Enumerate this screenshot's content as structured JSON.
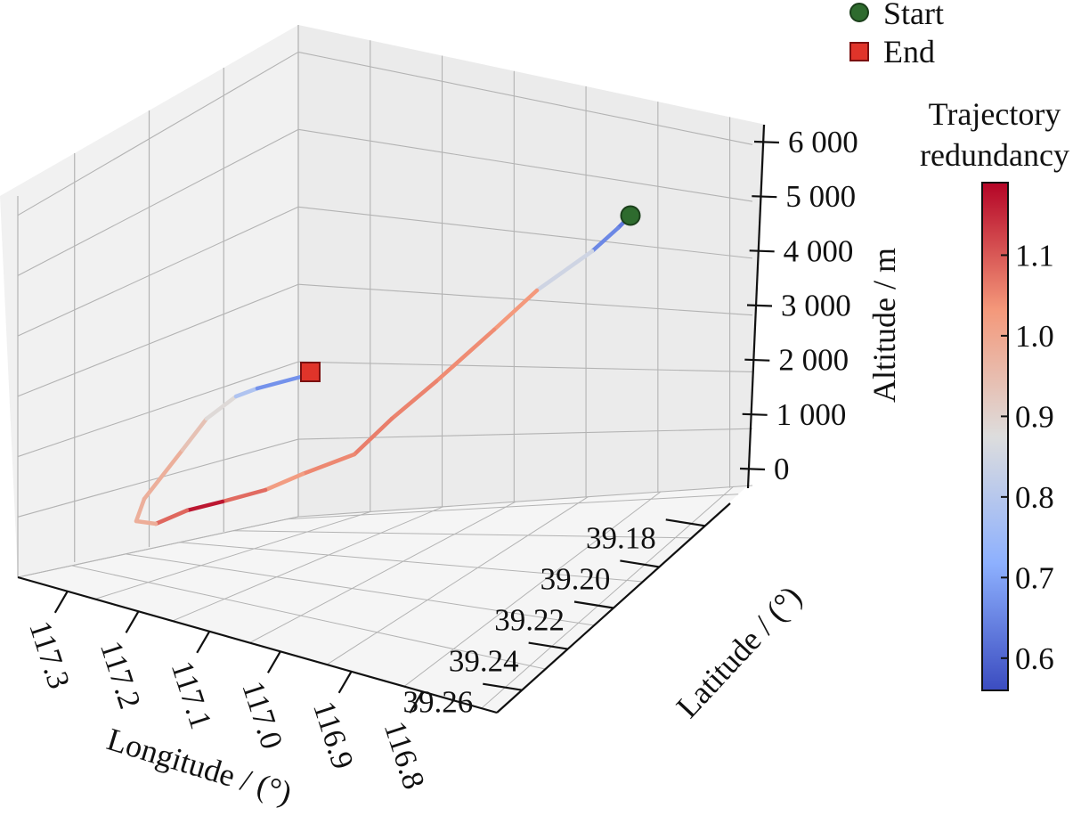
{
  "chart_data": {
    "type": "line",
    "projection": "3d",
    "xlabel": "Longitude / (°)",
    "ylabel": "Latitude / (°)",
    "zlabel": "Altitude / m",
    "x_ticks": [
      "117.3",
      "117.2",
      "117.1",
      "117.0",
      "116.9",
      "116.8"
    ],
    "y_ticks": [
      "39.18",
      "39.20",
      "39.22",
      "39.24",
      "39.26"
    ],
    "z_ticks": [
      "0",
      "1 000",
      "2 000",
      "3 000",
      "4 000",
      "5 000",
      "6 000"
    ],
    "grid": true,
    "legend": {
      "placement": "top-right",
      "entries": [
        {
          "label": "Start",
          "marker": "circle",
          "color": "#2e6b2e"
        },
        {
          "label": "End",
          "marker": "square",
          "color": "#e0342a"
        }
      ]
    },
    "colorbar": {
      "title_lines": [
        "Trajectory",
        "redundancy"
      ],
      "ticks": [
        "0.6",
        "0.7",
        "0.8",
        "0.9",
        "1.0",
        "1.1"
      ],
      "range": [
        0.56,
        1.19
      ],
      "colormap": "coolwarm",
      "colors": [
        "#3b4cc0",
        "#8db0fe",
        "#dddddd",
        "#f4987a",
        "#b40426"
      ]
    },
    "series": [
      {
        "longitude": [
          116.84,
          116.88,
          116.94,
          116.98,
          117.02,
          117.06,
          117.12,
          117.17,
          117.21,
          117.25,
          117.28,
          117.29,
          117.29,
          117.28,
          117.26,
          117.25,
          117.23,
          117.21
        ],
        "latitude": [
          39.2,
          39.201,
          39.205,
          39.21,
          39.215,
          39.22,
          39.228,
          39.238,
          39.243,
          39.247,
          39.25,
          39.25,
          39.245,
          39.235,
          39.22,
          39.21,
          39.195,
          39.185
        ],
        "altitude": [
          5000,
          4300,
          3900,
          3100,
          2200,
          1600,
          1300,
          1000,
          900,
          600,
          300,
          200,
          200,
          700,
          1300,
          1800,
          2200,
          2400
        ],
        "redundancy": [
          0.62,
          0.67,
          1.02,
          1.05,
          1.06,
          1.05,
          0.98,
          1.15,
          1.18,
          1.0,
          0.98,
          0.98,
          0.98,
          0.97,
          0.88,
          0.86,
          0.68,
          0.64
        ]
      }
    ]
  }
}
